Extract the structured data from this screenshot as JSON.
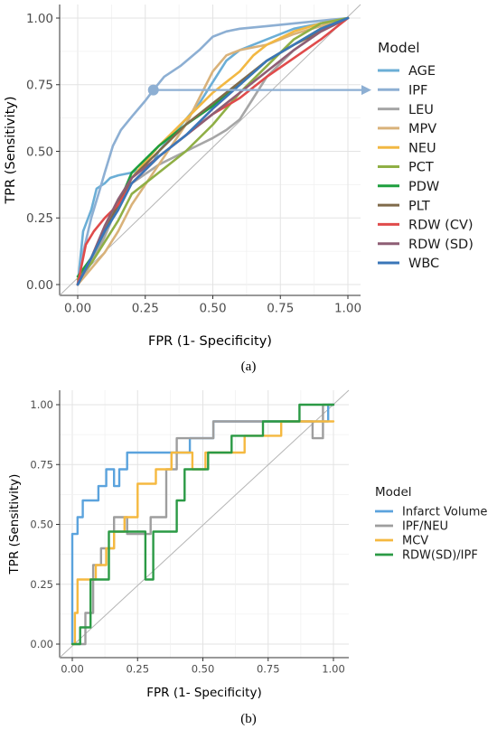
{
  "chart_data": [
    {
      "type": "line",
      "panel_label": "(a)",
      "xlabel": "FPR (1- Specificity)",
      "ylabel": "TPR (Sensitivity)",
      "xlim": [
        0,
        1
      ],
      "ylim": [
        0,
        1
      ],
      "x_ticks": [
        "0.00",
        "0.25",
        "0.50",
        "0.75",
        "1.00"
      ],
      "y_ticks": [
        "0.00",
        "0.25",
        "0.50",
        "0.75",
        "1.00"
      ],
      "grid": true,
      "reference_line": "diagonal",
      "legend_title": "Model",
      "legend_position": "right",
      "annotation": {
        "type": "point-with-arrow",
        "series": "IPF",
        "point": [
          0.28,
          0.73
        ]
      },
      "series": [
        {
          "name": "AGE",
          "color": "#6BAED6",
          "x": [
            0,
            0.02,
            0.05,
            0.07,
            0.1,
            0.12,
            0.15,
            0.2,
            0.25,
            0.28,
            0.3,
            0.35,
            0.4,
            0.45,
            0.5,
            0.55,
            0.6,
            0.7,
            0.8,
            0.9,
            1
          ],
          "y": [
            0,
            0.2,
            0.28,
            0.36,
            0.38,
            0.4,
            0.41,
            0.42,
            0.44,
            0.46,
            0.5,
            0.56,
            0.62,
            0.68,
            0.76,
            0.84,
            0.88,
            0.92,
            0.96,
            0.98,
            1
          ]
        },
        {
          "name": "IPF",
          "color": "#8DAFD3",
          "x": [
            0,
            0.02,
            0.05,
            0.08,
            0.1,
            0.13,
            0.16,
            0.2,
            0.25,
            0.28,
            0.32,
            0.38,
            0.45,
            0.5,
            0.55,
            0.6,
            0.7,
            0.8,
            0.9,
            1
          ],
          "y": [
            0,
            0.12,
            0.25,
            0.35,
            0.42,
            0.52,
            0.58,
            0.63,
            0.69,
            0.73,
            0.78,
            0.82,
            0.88,
            0.93,
            0.95,
            0.96,
            0.97,
            0.98,
            0.99,
            1
          ]
        },
        {
          "name": "LEU",
          "color": "#A6A6A6",
          "x": [
            0,
            0.05,
            0.1,
            0.15,
            0.2,
            0.3,
            0.4,
            0.5,
            0.55,
            0.6,
            0.65,
            0.7,
            0.8,
            0.9,
            1
          ],
          "y": [
            0,
            0.08,
            0.18,
            0.3,
            0.38,
            0.45,
            0.5,
            0.55,
            0.58,
            0.62,
            0.7,
            0.78,
            0.88,
            0.95,
            1
          ]
        },
        {
          "name": "MPV",
          "color": "#D9B27A",
          "x": [
            0,
            0.05,
            0.1,
            0.15,
            0.2,
            0.3,
            0.4,
            0.45,
            0.5,
            0.55,
            0.6,
            0.7,
            0.8,
            0.9,
            1
          ],
          "y": [
            0,
            0.06,
            0.12,
            0.2,
            0.3,
            0.45,
            0.6,
            0.7,
            0.8,
            0.86,
            0.88,
            0.9,
            0.94,
            0.97,
            1
          ]
        },
        {
          "name": "NEU",
          "color": "#F2B843",
          "x": [
            0,
            0.05,
            0.1,
            0.15,
            0.2,
            0.3,
            0.4,
            0.5,
            0.6,
            0.65,
            0.7,
            0.8,
            0.9,
            1
          ],
          "y": [
            0,
            0.1,
            0.2,
            0.3,
            0.4,
            0.52,
            0.62,
            0.72,
            0.8,
            0.86,
            0.9,
            0.95,
            0.98,
            1
          ]
        },
        {
          "name": "PCT",
          "color": "#8FAF45",
          "x": [
            0,
            0.05,
            0.1,
            0.15,
            0.2,
            0.3,
            0.4,
            0.5,
            0.6,
            0.7,
            0.8,
            0.9,
            1
          ],
          "y": [
            0.02,
            0.08,
            0.16,
            0.24,
            0.34,
            0.42,
            0.5,
            0.6,
            0.72,
            0.82,
            0.92,
            0.98,
            1
          ]
        },
        {
          "name": "PDW",
          "color": "#1E9F3E",
          "x": [
            0,
            0.05,
            0.1,
            0.15,
            0.2,
            0.3,
            0.4,
            0.5,
            0.6,
            0.7,
            0.8,
            0.9,
            1
          ],
          "y": [
            0.03,
            0.1,
            0.2,
            0.3,
            0.42,
            0.52,
            0.6,
            0.67,
            0.75,
            0.84,
            0.9,
            0.96,
            1
          ]
        },
        {
          "name": "PLT",
          "color": "#7F6A4A",
          "x": [
            0,
            0.05,
            0.1,
            0.15,
            0.2,
            0.3,
            0.4,
            0.5,
            0.6,
            0.7,
            0.8,
            0.9,
            1
          ],
          "y": [
            0,
            0.1,
            0.2,
            0.3,
            0.4,
            0.5,
            0.6,
            0.68,
            0.76,
            0.84,
            0.9,
            0.95,
            1
          ]
        },
        {
          "name": "RDW (CV)",
          "color": "#E04B4B",
          "x": [
            0,
            0.03,
            0.06,
            0.1,
            0.15,
            0.2,
            0.3,
            0.4,
            0.5,
            0.6,
            0.7,
            0.8,
            0.9,
            1
          ],
          "y": [
            0,
            0.15,
            0.2,
            0.25,
            0.3,
            0.38,
            0.48,
            0.56,
            0.64,
            0.7,
            0.78,
            0.85,
            0.92,
            1
          ]
        },
        {
          "name": "RDW (SD)",
          "color": "#8E5E74",
          "x": [
            0,
            0.05,
            0.1,
            0.15,
            0.2,
            0.3,
            0.4,
            0.5,
            0.6,
            0.7,
            0.8,
            0.9,
            1
          ],
          "y": [
            0,
            0.1,
            0.22,
            0.32,
            0.4,
            0.48,
            0.56,
            0.64,
            0.72,
            0.8,
            0.88,
            0.95,
            1
          ]
        },
        {
          "name": "WBC",
          "color": "#3A76B8",
          "x": [
            0,
            0.05,
            0.1,
            0.15,
            0.2,
            0.3,
            0.4,
            0.5,
            0.6,
            0.7,
            0.8,
            0.9,
            1
          ],
          "y": [
            0,
            0.1,
            0.2,
            0.28,
            0.38,
            0.48,
            0.56,
            0.66,
            0.75,
            0.84,
            0.9,
            0.96,
            1
          ]
        }
      ]
    },
    {
      "type": "line",
      "panel_label": "(b)",
      "xlabel": "FPR (1- Specificity)",
      "ylabel": "TPR (Sensitivity)",
      "xlim": [
        0,
        1
      ],
      "ylim": [
        0,
        1
      ],
      "x_ticks": [
        "0.00",
        "0.25",
        "0.50",
        "0.75",
        "1.00"
      ],
      "y_ticks": [
        "0.00",
        "0.25",
        "0.50",
        "0.75",
        "1.00"
      ],
      "grid": true,
      "reference_line": "diagonal",
      "legend_title": "Model",
      "legend_position": "right",
      "series": [
        {
          "name": "Infarct Volume",
          "color": "#5BA3DD",
          "x": [
            0,
            0,
            0.02,
            0.02,
            0.04,
            0.04,
            0.05,
            0.05,
            0.1,
            0.1,
            0.13,
            0.13,
            0.16,
            0.16,
            0.18,
            0.18,
            0.21,
            0.21,
            0.25,
            0.45,
            0.45,
            0.54,
            0.54,
            0.62,
            0.8,
            0.8,
            0.98,
            0.98,
            1
          ],
          "y": [
            0,
            0.46,
            0.46,
            0.53,
            0.53,
            0.6,
            0.6,
            0.6,
            0.6,
            0.66,
            0.66,
            0.73,
            0.73,
            0.66,
            0.66,
            0.73,
            0.73,
            0.8,
            0.8,
            0.8,
            0.86,
            0.86,
            0.93,
            0.93,
            0.93,
            0.93,
            0.93,
            1,
            1
          ]
        },
        {
          "name": "IPF/NEU",
          "color": "#9E9E9E",
          "x": [
            0,
            0.05,
            0.05,
            0.08,
            0.08,
            0.11,
            0.11,
            0.16,
            0.16,
            0.21,
            0.21,
            0.3,
            0.3,
            0.36,
            0.36,
            0.4,
            0.4,
            0.54,
            0.54,
            0.92,
            0.92,
            0.96,
            0.96,
            1
          ],
          "y": [
            0,
            0,
            0.13,
            0.13,
            0.33,
            0.33,
            0.4,
            0.4,
            0.53,
            0.53,
            0.46,
            0.46,
            0.53,
            0.53,
            0.73,
            0.73,
            0.86,
            0.86,
            0.93,
            0.93,
            0.86,
            0.86,
            1,
            1
          ]
        },
        {
          "name": "MCV",
          "color": "#F5B940",
          "x": [
            0,
            0.01,
            0.01,
            0.02,
            0.02,
            0.05,
            0.05,
            0.09,
            0.09,
            0.13,
            0.13,
            0.16,
            0.16,
            0.2,
            0.2,
            0.25,
            0.25,
            0.32,
            0.32,
            0.38,
            0.38,
            0.46,
            0.46,
            0.51,
            0.51,
            0.66,
            0.66,
            0.8,
            0.8,
            1
          ],
          "y": [
            0,
            0,
            0.13,
            0.13,
            0.27,
            0.27,
            0.27,
            0.27,
            0.33,
            0.33,
            0.4,
            0.4,
            0.47,
            0.47,
            0.53,
            0.53,
            0.67,
            0.67,
            0.73,
            0.73,
            0.8,
            0.8,
            0.73,
            0.73,
            0.8,
            0.8,
            0.87,
            0.87,
            0.93,
            0.93
          ]
        },
        {
          "name": "RDW(SD)/IPF",
          "color": "#2B9A45",
          "x": [
            0,
            0.03,
            0.03,
            0.07,
            0.07,
            0.14,
            0.14,
            0.28,
            0.28,
            0.31,
            0.31,
            0.4,
            0.4,
            0.43,
            0.43,
            0.52,
            0.52,
            0.61,
            0.61,
            0.73,
            0.73,
            0.87,
            0.87,
            1
          ],
          "y": [
            0,
            0,
            0.07,
            0.07,
            0.27,
            0.27,
            0.47,
            0.47,
            0.27,
            0.27,
            0.47,
            0.47,
            0.6,
            0.6,
            0.73,
            0.73,
            0.8,
            0.8,
            0.87,
            0.87,
            0.93,
            0.93,
            1,
            1
          ]
        }
      ]
    }
  ]
}
